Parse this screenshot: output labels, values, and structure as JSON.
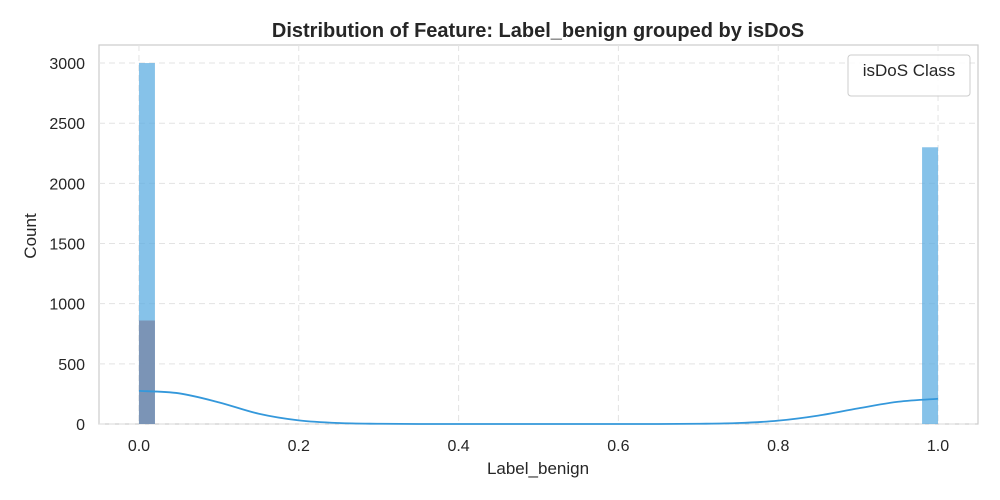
{
  "chart_data": {
    "type": "histogram",
    "title": "Distribution of Feature: Label_benign grouped by isDoS",
    "xlabel": "Label_benign",
    "ylabel": "Count",
    "xlim": [
      -0.05,
      1.05
    ],
    "ylim": [
      0,
      3150
    ],
    "xticks": [
      0.0,
      0.2,
      0.4,
      0.6,
      0.8,
      1.0
    ],
    "xtick_labels": [
      "0.0",
      "0.2",
      "0.4",
      "0.6",
      "0.8",
      "1.0"
    ],
    "yticks": [
      0,
      500,
      1000,
      1500,
      2000,
      2500,
      3000
    ],
    "ytick_labels": [
      "0",
      "500",
      "1000",
      "1500",
      "2000",
      "2500",
      "3000"
    ],
    "grid": true,
    "legend": {
      "title": "isDoS Class",
      "placement": "top-right"
    },
    "series": [
      {
        "color": "#5dade2",
        "bars": [
          {
            "x0": 0.0,
            "x1": 0.02,
            "count": 3000
          },
          {
            "x0": 0.98,
            "x1": 1.0,
            "count": 2300
          }
        ]
      },
      {
        "color": "#7a8fb0",
        "bars": [
          {
            "x0": 0.0,
            "x1": 0.02,
            "count": 860
          }
        ]
      }
    ],
    "kde": {
      "color": "#3498db",
      "x": [
        0.0,
        0.05,
        0.1,
        0.15,
        0.2,
        0.25,
        0.3,
        0.35,
        0.4,
        0.5,
        0.6,
        0.65,
        0.7,
        0.75,
        0.8,
        0.85,
        0.9,
        0.95,
        1.0
      ],
      "y": [
        275,
        255,
        180,
        85,
        30,
        8,
        2,
        0,
        0,
        0,
        0,
        0,
        2,
        8,
        28,
        70,
        130,
        185,
        210
      ]
    }
  }
}
